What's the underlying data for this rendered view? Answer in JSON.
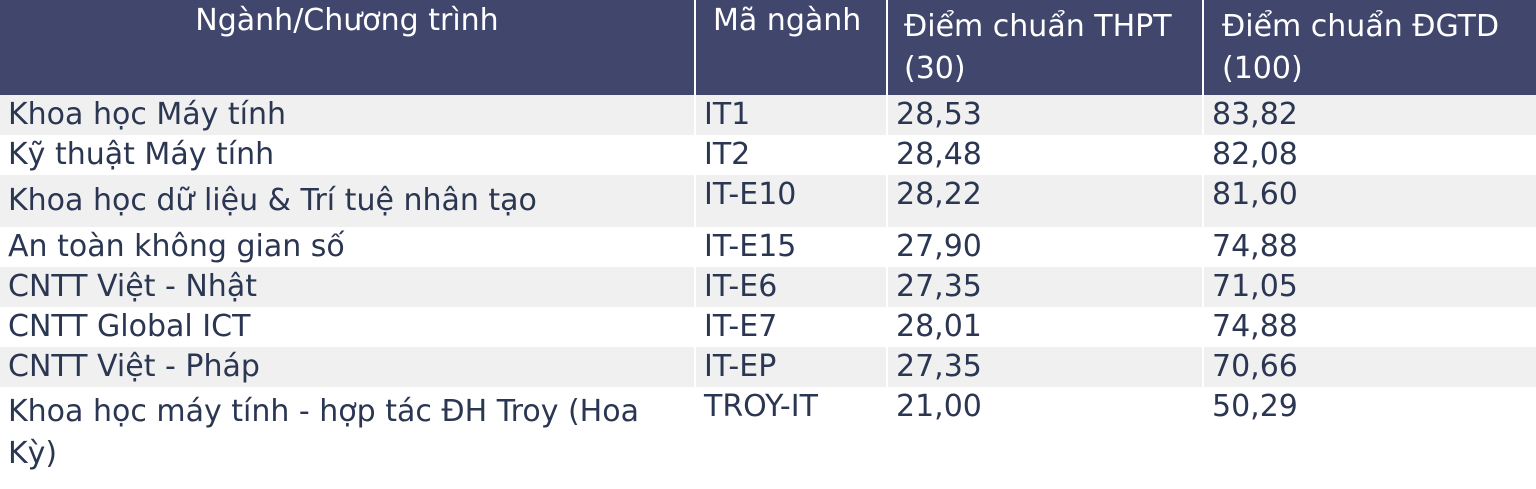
{
  "table": {
    "headers": [
      "Ngành/Chương trình",
      "Mã ngành",
      "Điểm chuẩn THPT (30)",
      "Điểm chuẩn ĐGTD (100)"
    ],
    "rows": [
      {
        "program": "Khoa học Máy tính",
        "code": "IT1",
        "thpt": "28,53",
        "dgtd": "83,82"
      },
      {
        "program": "Kỹ thuật Máy tính",
        "code": "IT2",
        "thpt": "28,48",
        "dgtd": "82,08"
      },
      {
        "program": "Khoa học dữ liệu & Trí tuệ nhân tạo",
        "code": "IT-E10",
        "thpt": "28,22",
        "dgtd": "81,60"
      },
      {
        "program": "An toàn không gian số",
        "code": "IT-E15",
        "thpt": "27,90",
        "dgtd": "74,88"
      },
      {
        "program": "CNTT Việt - Nhật",
        "code": "IT-E6",
        "thpt": "27,35",
        "dgtd": "71,05"
      },
      {
        "program": "CNTT Global ICT",
        "code": "IT-E7",
        "thpt": "28,01",
        "dgtd": "74,88"
      },
      {
        "program": "CNTT Việt - Pháp",
        "code": "IT-EP",
        "thpt": "27,35",
        "dgtd": "70,66"
      },
      {
        "program": "Khoa học máy tính - hợp tác ĐH Troy (Hoa Kỳ)",
        "code": "TROY-IT",
        "thpt": "21,00",
        "dgtd": "50,29"
      }
    ]
  },
  "colors": {
    "header_bg": "#41466d",
    "header_text": "#ffffff",
    "body_text": "#2b3652",
    "stripe": "#f0f0f0"
  }
}
